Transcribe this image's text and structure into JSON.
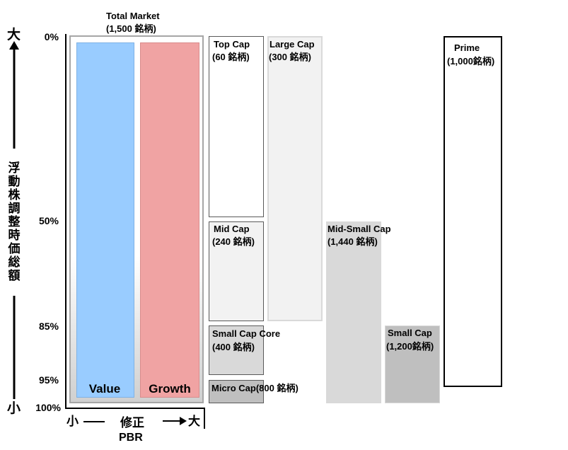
{
  "total_market": {
    "title": "Total Market",
    "count": "(1,500 銘柄)"
  },
  "y_axis": {
    "top_label": "大",
    "bottom_label": "小",
    "title_chars": [
      "浮",
      "動",
      "株",
      "調",
      "整",
      "時",
      "価",
      "総",
      "額"
    ],
    "ticks": [
      "0%",
      "50%",
      "85%",
      "95%",
      "100%"
    ]
  },
  "x_axis": {
    "left_label": "小",
    "middle_label": "修正",
    "right_label": "大",
    "title": "PBR"
  },
  "bars": {
    "value": "Value",
    "growth": "Growth"
  },
  "segments": {
    "top_cap": {
      "name": "Top Cap",
      "count": "(60 銘柄)"
    },
    "mid_cap": {
      "name": "Mid Cap",
      "count": "(240 銘柄)"
    },
    "small_cap_core": {
      "name": "Small Cap Core",
      "count": "(400 銘柄)"
    },
    "micro_cap": {
      "name": "Micro Cap(800 銘柄)"
    },
    "large_cap": {
      "name": "Large Cap",
      "count": "(300 銘柄)"
    },
    "mid_small_cap": {
      "name": "Mid-Small Cap",
      "count": "(1,440 銘柄)"
    },
    "small_cap": {
      "name": "Small Cap",
      "count": "(1,200銘柄)"
    },
    "prime": {
      "name": "Prime",
      "count": "(1,000銘柄)"
    }
  },
  "colors": {
    "value": "#99ccff",
    "growth": "#f0a3a3",
    "light_gray": "#f2f2f2",
    "mid_gray": "#d9d9d9",
    "dark_gray": "#bfbfbf"
  }
}
